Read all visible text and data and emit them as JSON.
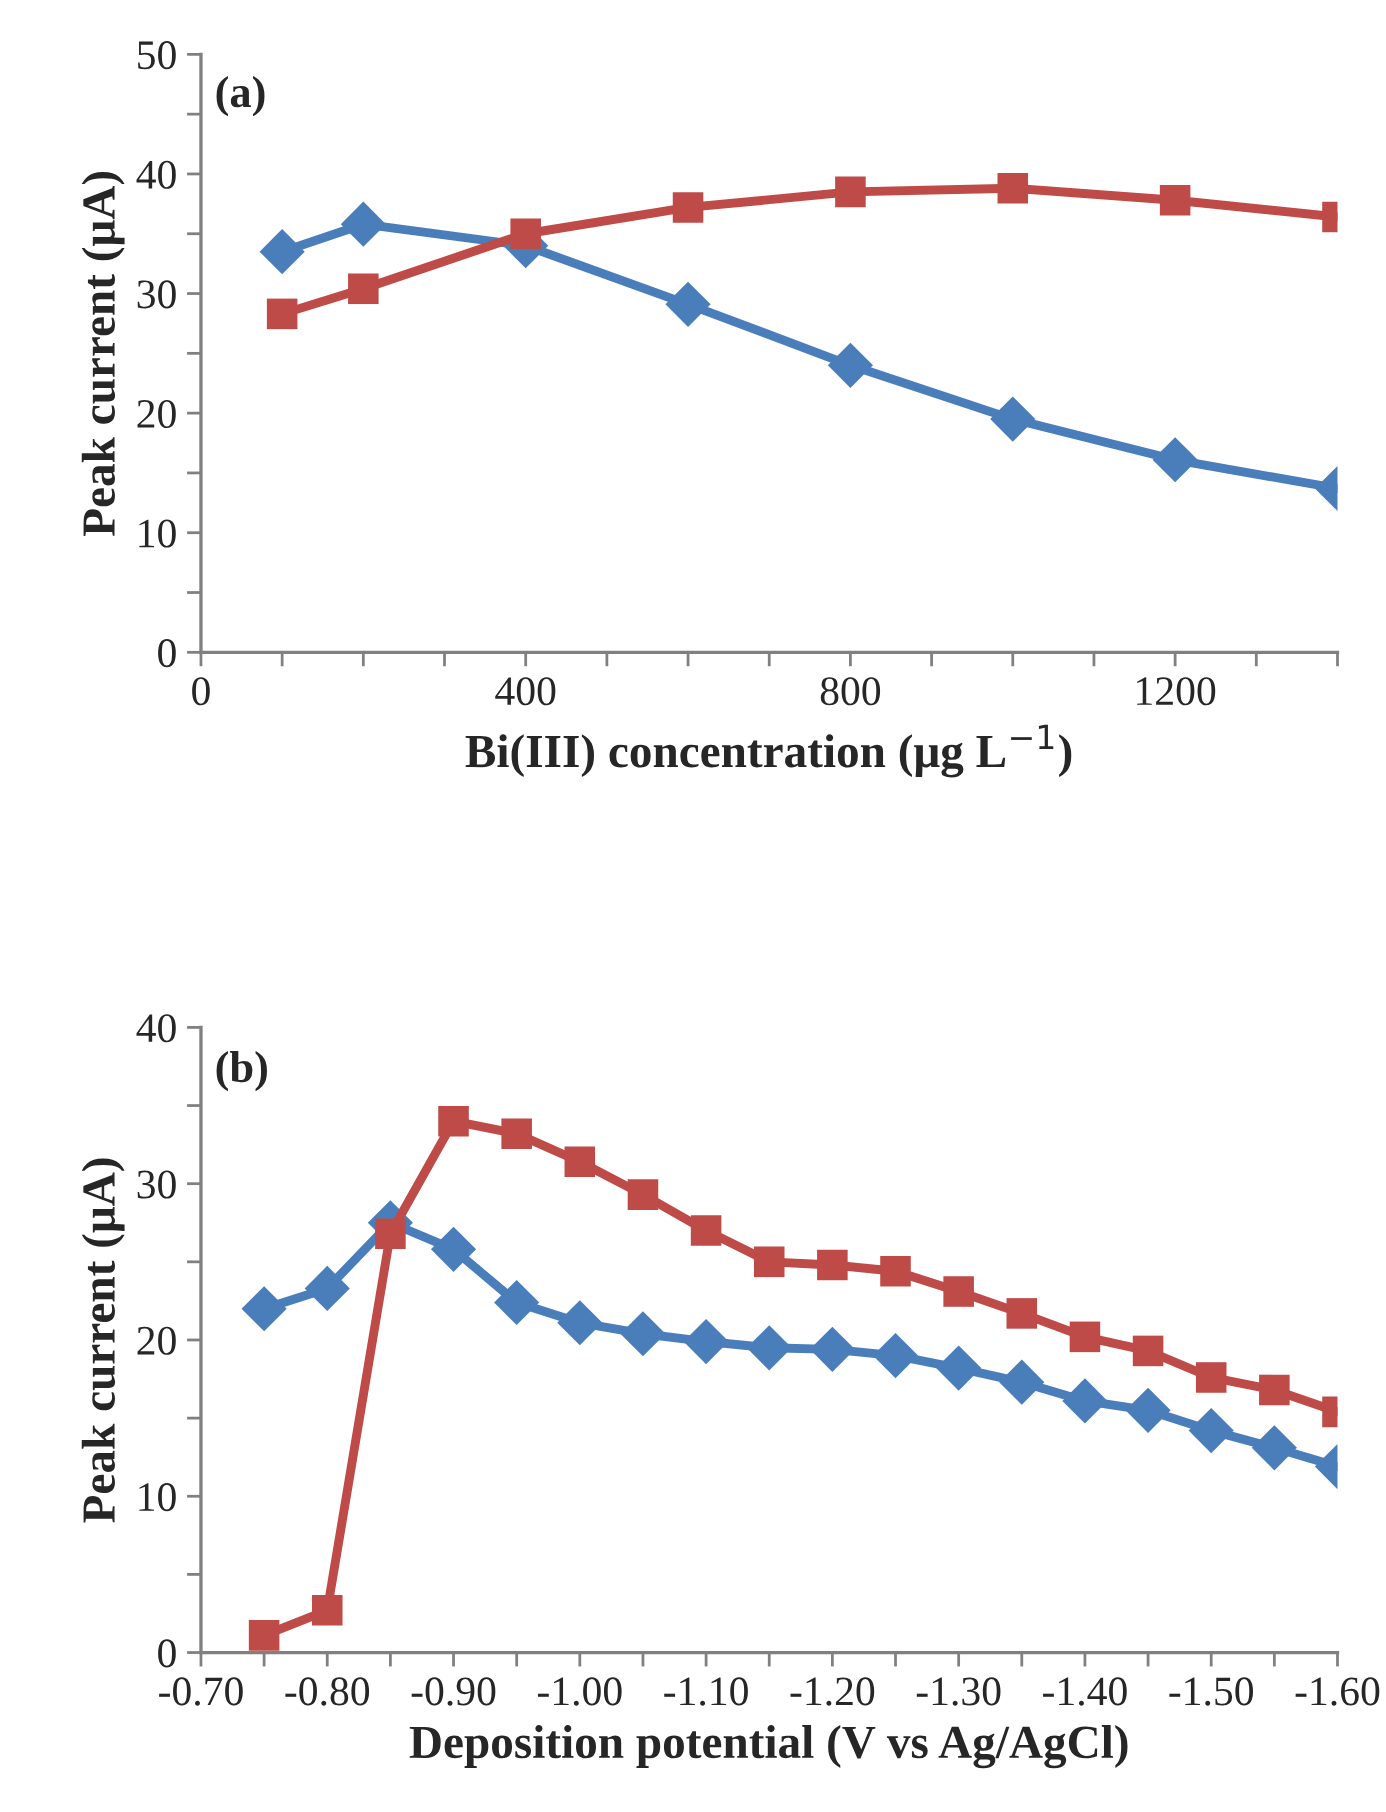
{
  "chart_data": [
    {
      "type": "line",
      "xlabel": "Bi(III) concentration (μg L$^{−1}$)",
      "ylabel": "Peak current (μA)",
      "annotations": [
        "(a)"
      ],
      "x": [
        100,
        200,
        400,
        600,
        800,
        1000,
        1200,
        1400
      ],
      "series": [
        {
          "color": "#4a7ebb",
          "marker": "diamond",
          "values": [
            33.5,
            35.8,
            34.0,
            29.1,
            24.0,
            19.5,
            16.1,
            13.7
          ]
        },
        {
          "color": "#be4b48",
          "marker": "square",
          "values": [
            28.3,
            30.4,
            35.0,
            37.2,
            38.5,
            38.8,
            37.8,
            36.4
          ]
        }
      ],
      "xlim": [
        0,
        1400
      ],
      "xticks": [
        0,
        {
          "value": 100,
          "label": null
        },
        {
          "value": 200,
          "label": null
        },
        {
          "value": 300,
          "label": null
        },
        400,
        {
          "value": 500,
          "label": null
        },
        {
          "value": 600,
          "label": null
        },
        {
          "value": 700,
          "label": null
        },
        800,
        {
          "value": 900,
          "label": null
        },
        {
          "value": 1000,
          "label": null
        },
        {
          "value": 1100,
          "label": null
        },
        1200,
        {
          "value": 1300,
          "label": null
        },
        {
          "value": 1400,
          "label": null
        }
      ],
      "ylim": [
        0,
        50
      ],
      "yticks": [
        0,
        {
          "value": 5,
          "label": null
        },
        10,
        {
          "value": 15,
          "label": null
        },
        20,
        {
          "value": 25,
          "label": null
        },
        30,
        {
          "value": 35,
          "label": null
        },
        40,
        {
          "value": 45,
          "label": null
        },
        50
      ],
      "line_style": "solid"
    },
    {
      "type": "line",
      "xlabel": "Deposition potential (V vs Ag/AgCl)",
      "ylabel": "Peak current (μA)",
      "annotations": [
        "(b)"
      ],
      "x": [
        -0.75,
        -0.8,
        -0.85,
        -0.9,
        -0.95,
        -1.0,
        -1.05,
        -1.1,
        -1.15,
        -1.2,
        -1.25,
        -1.3,
        -1.35,
        -1.4,
        -1.45,
        -1.5,
        -1.55,
        -1.6
      ],
      "series": [
        {
          "color": "#4a7ebb",
          "marker": "diamond",
          "values": [
            22.0,
            23.3,
            27.5,
            25.8,
            22.4,
            21.1,
            20.4,
            19.9,
            19.5,
            19.4,
            19.0,
            18.2,
            17.3,
            16.1,
            15.5,
            14.2,
            13.1,
            11.9
          ]
        },
        {
          "color": "#be4b48",
          "marker": "square",
          "values": [
            1.1,
            2.7,
            26.8,
            34.0,
            33.2,
            31.4,
            29.3,
            27.0,
            25.0,
            24.8,
            24.4,
            23.1,
            21.7,
            20.2,
            19.3,
            17.6,
            16.8,
            15.4
          ]
        }
      ],
      "xlim": [
        -0.7,
        -1.6
      ],
      "xticks": [
        {
          "value": -0.7,
          "label": "-0.70"
        },
        {
          "value": -0.75,
          "label": null
        },
        {
          "value": -0.8,
          "label": "-0.80"
        },
        {
          "value": -0.85,
          "label": null
        },
        {
          "value": -0.9,
          "label": "-0.90"
        },
        {
          "value": -0.95,
          "label": null
        },
        {
          "value": -1.0,
          "label": "-1.00"
        },
        {
          "value": -1.05,
          "label": null
        },
        {
          "value": -1.1,
          "label": "-1.10"
        },
        {
          "value": -1.15,
          "label": null
        },
        {
          "value": -1.2,
          "label": "-1.20"
        },
        {
          "value": -1.25,
          "label": null
        },
        {
          "value": -1.3,
          "label": "-1.30"
        },
        {
          "value": -1.35,
          "label": null
        },
        {
          "value": -1.4,
          "label": "-1.40"
        },
        {
          "value": -1.45,
          "label": null
        },
        {
          "value": -1.5,
          "label": "-1.50"
        },
        {
          "value": -1.55,
          "label": null
        },
        {
          "value": -1.6,
          "label": "-1.60"
        }
      ],
      "ylim": [
        0,
        40
      ],
      "yticks": [
        0,
        {
          "value": 5,
          "label": null
        },
        10,
        {
          "value": 15,
          "label": null
        },
        20,
        {
          "value": 25,
          "label": null
        },
        30,
        {
          "value": 35,
          "label": null
        },
        40
      ],
      "line_style": "solid"
    }
  ]
}
